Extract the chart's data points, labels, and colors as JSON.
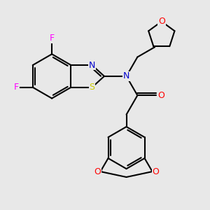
{
  "background_color": "#e8e8e8",
  "atom_colors": {
    "F": "#ff00ff",
    "N": "#0000cc",
    "O": "#ff0000",
    "S": "#cccc00",
    "C": "#000000"
  },
  "bond_color": "#000000",
  "bond_width": 1.5,
  "font_size": 9
}
